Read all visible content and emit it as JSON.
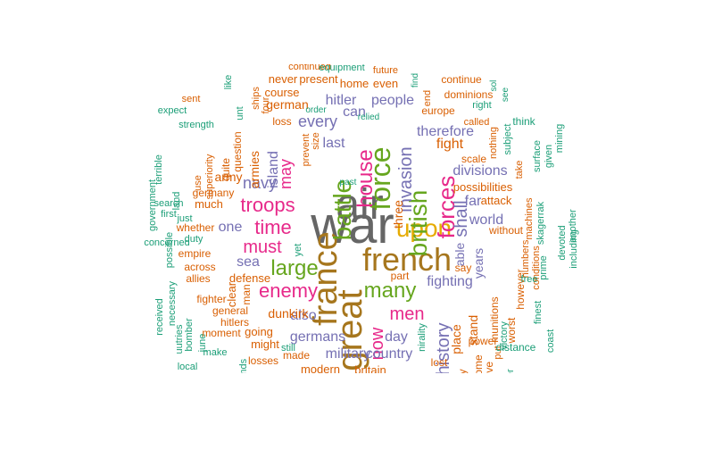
{
  "palette": {
    "teal": "#1b9e77",
    "orange": "#d95f02",
    "purple": "#7570b3",
    "magenta": "#e7298a",
    "green": "#66a61e",
    "gold": "#e6ab02",
    "brown": "#a6761d",
    "gray": "#666666"
  },
  "words": [
    {
      "text": "war",
      "color": "gray"
    },
    {
      "text": "air",
      "color": "gray"
    },
    {
      "text": "great",
      "color": "brown"
    },
    {
      "text": "france",
      "color": "brown"
    },
    {
      "text": "french",
      "color": "brown"
    },
    {
      "text": "upon",
      "color": "gold"
    },
    {
      "text": "battle",
      "color": "green"
    },
    {
      "text": "british",
      "color": "green"
    },
    {
      "text": "force",
      "color": "green"
    },
    {
      "text": "house",
      "color": "magenta"
    },
    {
      "text": "forces",
      "color": "magenta"
    },
    {
      "text": "invasion",
      "color": "purple"
    },
    {
      "text": "many",
      "color": "green"
    },
    {
      "text": "large",
      "color": "green"
    },
    {
      "text": "enemy",
      "color": "magenta"
    },
    {
      "text": "troops",
      "color": "magenta"
    },
    {
      "text": "time",
      "color": "magenta"
    },
    {
      "text": "must",
      "color": "magenta"
    },
    {
      "text": "men",
      "color": "magenta"
    },
    {
      "text": "now",
      "color": "magenta"
    },
    {
      "text": "history",
      "color": "purple"
    },
    {
      "text": "shall",
      "color": "purple"
    },
    {
      "text": "fighting",
      "color": "purple"
    },
    {
      "text": "day",
      "color": "purple"
    },
    {
      "text": "also",
      "color": "purple"
    },
    {
      "text": "germans",
      "color": "purple"
    },
    {
      "text": "military",
      "color": "purple"
    },
    {
      "text": "country",
      "color": "purple"
    },
    {
      "text": "navy",
      "color": "purple"
    },
    {
      "text": "may",
      "color": "magenta"
    },
    {
      "text": "island",
      "color": "purple"
    },
    {
      "text": "every",
      "color": "purple"
    },
    {
      "text": "last",
      "color": "purple"
    },
    {
      "text": "can",
      "color": "purple"
    },
    {
      "text": "hitler",
      "color": "purple"
    },
    {
      "text": "people",
      "color": "purple"
    },
    {
      "text": "therefore",
      "color": "purple"
    },
    {
      "text": "fight",
      "color": "orange"
    },
    {
      "text": "divisions",
      "color": "purple"
    },
    {
      "text": "far",
      "color": "purple"
    },
    {
      "text": "world",
      "color": "purple"
    },
    {
      "text": "years",
      "color": "purple"
    },
    {
      "text": "able",
      "color": "purple"
    },
    {
      "text": "one",
      "color": "purple"
    },
    {
      "text": "sea",
      "color": "purple"
    },
    {
      "text": "three",
      "color": "orange"
    },
    {
      "text": "german",
      "color": "orange"
    },
    {
      "text": "course",
      "color": "orange"
    },
    {
      "text": "never",
      "color": "orange"
    },
    {
      "text": "present",
      "color": "orange"
    },
    {
      "text": "home",
      "color": "orange"
    },
    {
      "text": "even",
      "color": "orange"
    },
    {
      "text": "continue",
      "color": "orange"
    },
    {
      "text": "continued",
      "color": "orange"
    },
    {
      "text": "future",
      "color": "orange"
    },
    {
      "text": "dominions",
      "color": "orange"
    },
    {
      "text": "europe",
      "color": "orange"
    },
    {
      "text": "loss",
      "color": "orange"
    },
    {
      "text": "army",
      "color": "orange"
    },
    {
      "text": "armies",
      "color": "orange"
    },
    {
      "text": "quite",
      "color": "orange"
    },
    {
      "text": "question",
      "color": "orange"
    },
    {
      "text": "much",
      "color": "orange"
    },
    {
      "text": "germany",
      "color": "orange"
    },
    {
      "text": "whether",
      "color": "orange"
    },
    {
      "text": "empire",
      "color": "orange"
    },
    {
      "text": "across",
      "color": "orange"
    },
    {
      "text": "allies",
      "color": "orange"
    },
    {
      "text": "fighter",
      "color": "orange"
    },
    {
      "text": "hitlers",
      "color": "orange"
    },
    {
      "text": "moment",
      "color": "orange"
    },
    {
      "text": "going",
      "color": "orange"
    },
    {
      "text": "dunkirk",
      "color": "orange"
    },
    {
      "text": "might",
      "color": "orange"
    },
    {
      "text": "losses",
      "color": "orange"
    },
    {
      "text": "made",
      "color": "orange"
    },
    {
      "text": "modern",
      "color": "orange"
    },
    {
      "text": "britain",
      "color": "orange"
    },
    {
      "text": "general",
      "color": "orange"
    },
    {
      "text": "clear",
      "color": "orange"
    },
    {
      "text": "defense",
      "color": "orange"
    },
    {
      "text": "man",
      "color": "orange"
    },
    {
      "text": "part",
      "color": "orange"
    },
    {
      "text": "stand",
      "color": "orange"
    },
    {
      "text": "place",
      "color": "orange"
    },
    {
      "text": "power",
      "color": "orange"
    },
    {
      "text": "munitions",
      "color": "orange"
    },
    {
      "text": "however",
      "color": "orange"
    },
    {
      "text": "possibilities",
      "color": "orange"
    },
    {
      "text": "attack",
      "color": "orange"
    },
    {
      "text": "scale",
      "color": "orange"
    },
    {
      "text": "without",
      "color": "orange"
    },
    {
      "text": "say",
      "color": "orange"
    },
    {
      "text": "lost",
      "color": "orange"
    },
    {
      "text": "way",
      "color": "orange"
    },
    {
      "text": "come",
      "color": "orange"
    },
    {
      "text": "give",
      "color": "orange"
    },
    {
      "text": "put",
      "color": "orange"
    },
    {
      "text": "worst",
      "color": "orange"
    },
    {
      "text": "numbers",
      "color": "orange"
    },
    {
      "text": "conditions",
      "color": "orange"
    },
    {
      "text": "machines",
      "color": "orange"
    },
    {
      "text": "take",
      "color": "orange"
    },
    {
      "text": "nothing",
      "color": "orange"
    },
    {
      "text": "called",
      "color": "orange"
    },
    {
      "text": "end",
      "color": "orange"
    },
    {
      "text": "prevent",
      "color": "orange"
    },
    {
      "text": "size",
      "color": "orange"
    },
    {
      "text": "use",
      "color": "orange"
    },
    {
      "text": "superiority",
      "color": "orange"
    },
    {
      "text": "ships",
      "color": "orange"
    },
    {
      "text": "four",
      "color": "orange"
    },
    {
      "text": "sent",
      "color": "orange"
    },
    {
      "text": "expect",
      "color": "teal"
    },
    {
      "text": "strength",
      "color": "teal"
    },
    {
      "text": "like",
      "color": "teal"
    },
    {
      "text": "unt",
      "color": "teal"
    },
    {
      "text": "equipment",
      "color": "teal"
    },
    {
      "text": "order",
      "color": "teal"
    },
    {
      "text": "relied",
      "color": "teal"
    },
    {
      "text": "past",
      "color": "teal"
    },
    {
      "text": "find",
      "color": "teal"
    },
    {
      "text": "sol",
      "color": "teal"
    },
    {
      "text": "see",
      "color": "teal"
    },
    {
      "text": "right",
      "color": "teal"
    },
    {
      "text": "subject",
      "color": "teal"
    },
    {
      "text": "think",
      "color": "teal"
    },
    {
      "text": "surface",
      "color": "teal"
    },
    {
      "text": "given",
      "color": "teal"
    },
    {
      "text": "mining",
      "color": "teal"
    },
    {
      "text": "another",
      "color": "teal"
    },
    {
      "text": "devoted",
      "color": "teal"
    },
    {
      "text": "including",
      "color": "teal"
    },
    {
      "text": "skagerrak",
      "color": "teal"
    },
    {
      "text": "prime",
      "color": "teal"
    },
    {
      "text": "free",
      "color": "teal"
    },
    {
      "text": "finest",
      "color": "teal"
    },
    {
      "text": "coast",
      "color": "teal"
    },
    {
      "text": "distance",
      "color": "teal"
    },
    {
      "text": "victory",
      "color": "teal"
    },
    {
      "text": "ever",
      "color": "teal"
    },
    {
      "text": "nirality",
      "color": "teal"
    },
    {
      "text": "yet",
      "color": "teal"
    },
    {
      "text": "still",
      "color": "teal"
    },
    {
      "text": "make",
      "color": "teal"
    },
    {
      "text": "june",
      "color": "teal"
    },
    {
      "text": "local",
      "color": "teal"
    },
    {
      "text": "depends",
      "color": "teal"
    },
    {
      "text": "uutries",
      "color": "teal"
    },
    {
      "text": "bomber",
      "color": "teal"
    },
    {
      "text": "necessary",
      "color": "teal"
    },
    {
      "text": "received",
      "color": "teal"
    },
    {
      "text": "possible",
      "color": "teal"
    },
    {
      "text": "concerned",
      "color": "teal"
    },
    {
      "text": "duty",
      "color": "teal"
    },
    {
      "text": "just",
      "color": "teal"
    },
    {
      "text": "first",
      "color": "teal"
    },
    {
      "text": "search",
      "color": "teal"
    },
    {
      "text": "land",
      "color": "teal"
    },
    {
      "text": "government",
      "color": "teal"
    },
    {
      "text": "terrible",
      "color": "teal"
    },
    {
      "text": "vigilance",
      "color": "teal"
    }
  ]
}
